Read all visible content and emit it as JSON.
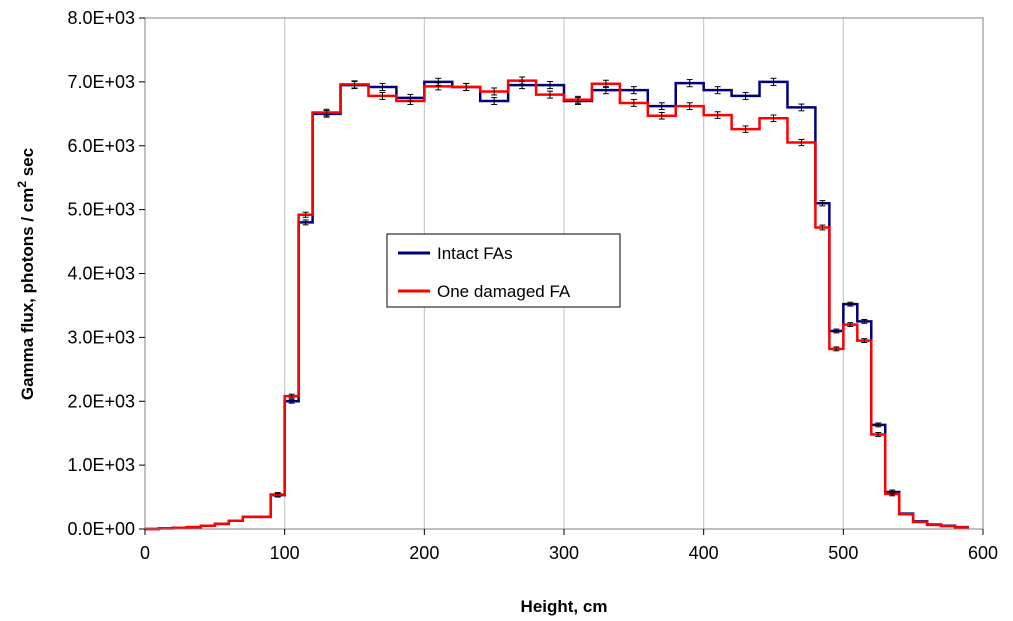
{
  "chart_data": {
    "type": "line",
    "step": true,
    "xlabel": "Height, cm",
    "ylabel": "Gamma flux, photons / cm² sec",
    "ylabel_parts": {
      "main": "Gamma flux, photons / cm",
      "sup": "2",
      "tail": " sec"
    },
    "xlim": [
      0,
      600
    ],
    "ylim": [
      0,
      8000
    ],
    "x_ticks": [
      "0",
      "100",
      "200",
      "300",
      "400",
      "500",
      "600"
    ],
    "x_tick_values": [
      0,
      100,
      200,
      300,
      400,
      500,
      600
    ],
    "y_ticks": [
      "0.0E+00",
      "1.0E+03",
      "2.0E+03",
      "3.0E+03",
      "4.0E+03",
      "5.0E+03",
      "6.0E+03",
      "7.0E+03",
      "8.0E+03"
    ],
    "y_tick_values": [
      0,
      1000,
      2000,
      3000,
      4000,
      5000,
      6000,
      7000,
      8000
    ],
    "grid": {
      "vertical": true,
      "horizontal": false
    },
    "legend_position": "center-left",
    "error_bars": true,
    "series": [
      {
        "name": "Intact FAs",
        "color": "#00007f",
        "edges": [
          0,
          10,
          20,
          30,
          40,
          50,
          60,
          70,
          80,
          90,
          100,
          110,
          120,
          140,
          160,
          180,
          200,
          220,
          240,
          260,
          280,
          300,
          320,
          340,
          360,
          380,
          400,
          420,
          440,
          460,
          480,
          490,
          500,
          510,
          520,
          530,
          540,
          550,
          560,
          570,
          580,
          590
        ],
        "values": [
          0,
          10,
          20,
          30,
          50,
          80,
          130,
          190,
          190,
          530,
          2000,
          4800,
          6500,
          6950,
          6920,
          6750,
          7000,
          6920,
          6700,
          6950,
          6950,
          6700,
          6870,
          6870,
          6620,
          6980,
          6870,
          6780,
          7000,
          6600,
          5100,
          3100,
          3520,
          3250,
          1630,
          580,
          240,
          120,
          70,
          50,
          30
        ]
      },
      {
        "name": "One damaged FA",
        "color": "#ff0000",
        "edges": [
          0,
          10,
          20,
          30,
          40,
          50,
          60,
          70,
          80,
          90,
          100,
          110,
          120,
          140,
          160,
          180,
          200,
          220,
          240,
          260,
          280,
          300,
          320,
          340,
          360,
          380,
          400,
          420,
          440,
          460,
          480,
          490,
          500,
          510,
          520,
          530,
          540,
          550,
          560,
          570,
          580,
          590
        ],
        "values": [
          0,
          10,
          20,
          30,
          50,
          80,
          130,
          190,
          190,
          540,
          2080,
          4920,
          6520,
          6960,
          6780,
          6700,
          6930,
          6920,
          6850,
          7020,
          6800,
          6720,
          6970,
          6670,
          6470,
          6620,
          6480,
          6260,
          6430,
          6050,
          4720,
          2820,
          3200,
          2950,
          1480,
          550,
          230,
          110,
          65,
          45,
          25
        ]
      }
    ]
  }
}
